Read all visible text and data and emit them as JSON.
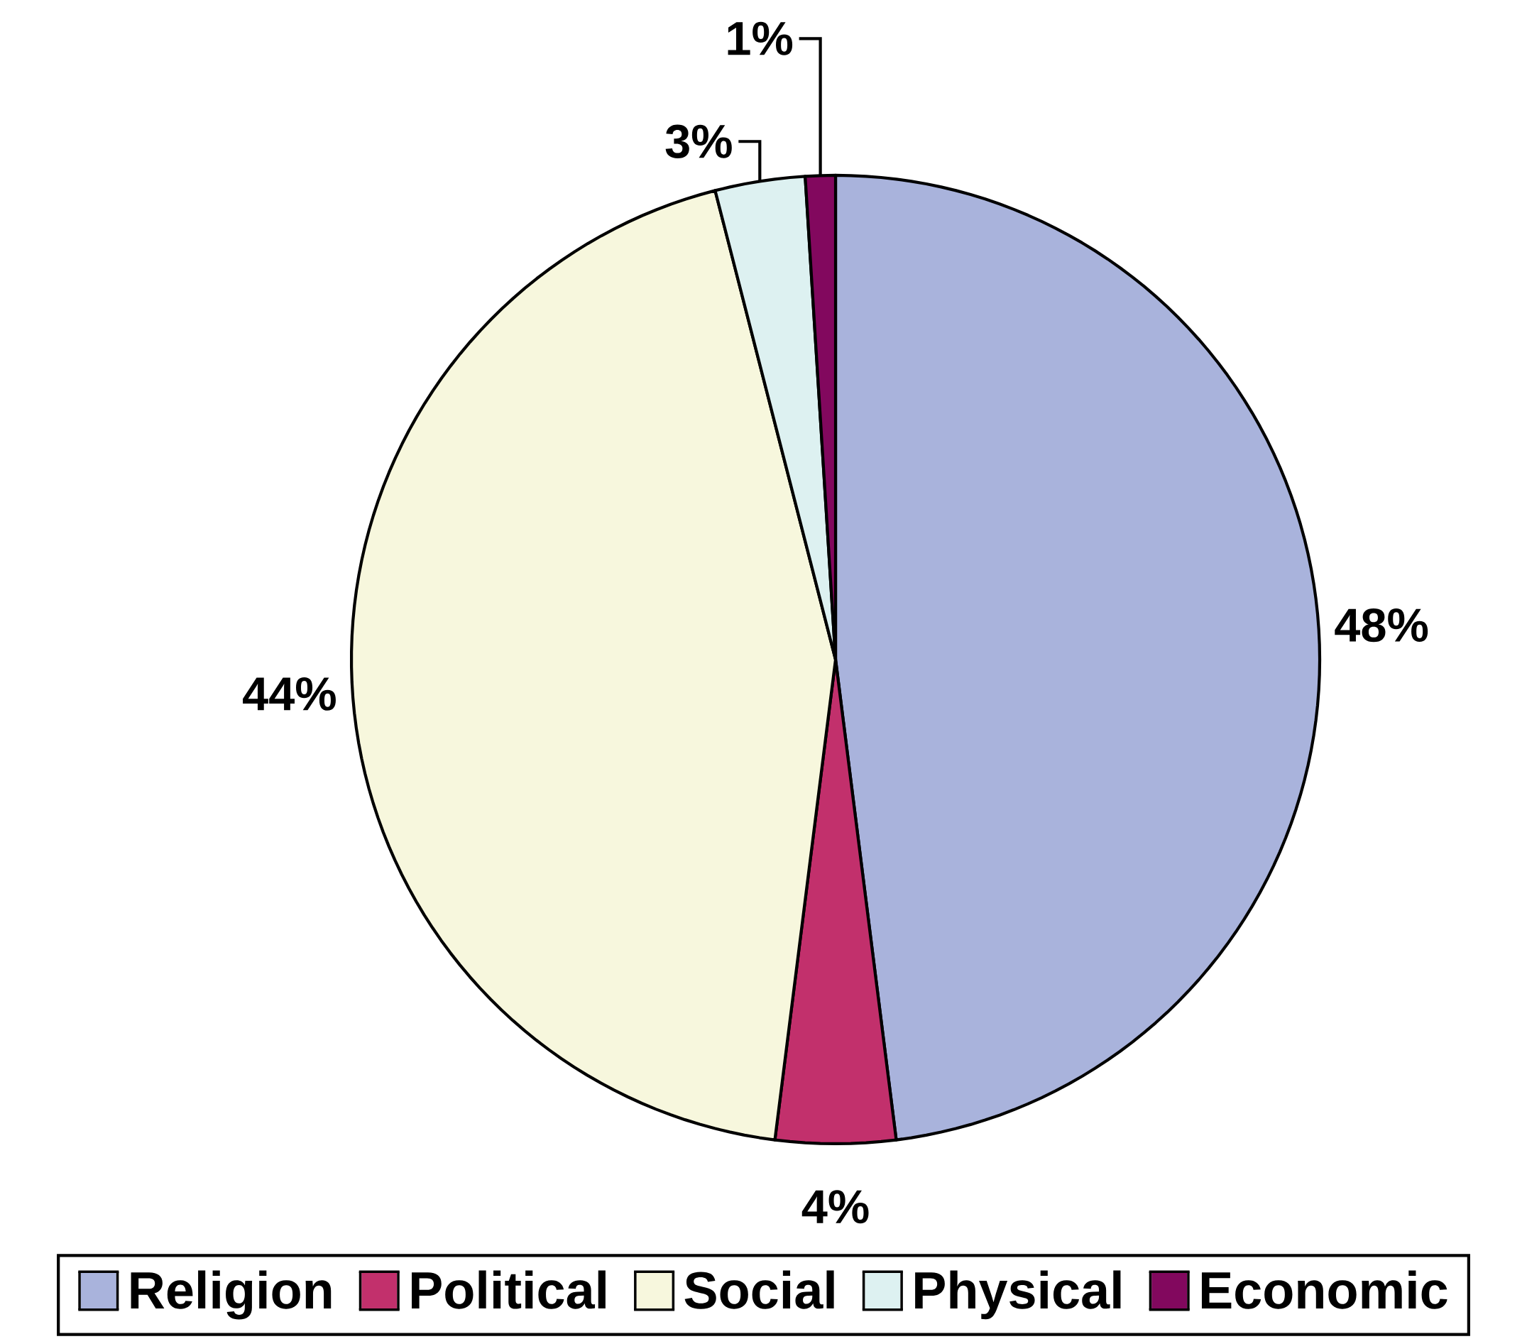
{
  "chart_data": {
    "type": "pie",
    "categories": [
      "Religion",
      "Political",
      "Social",
      "Physical",
      "Economic"
    ],
    "values": [
      48,
      4,
      44,
      3,
      1
    ],
    "value_labels": [
      "48%",
      "4%",
      "44%",
      "3%",
      "1%"
    ],
    "colors": [
      "#a9b3dc",
      "#c2306c",
      "#f7f7dd",
      "#ddf1f1",
      "#82085e"
    ],
    "legend": "bottom"
  }
}
